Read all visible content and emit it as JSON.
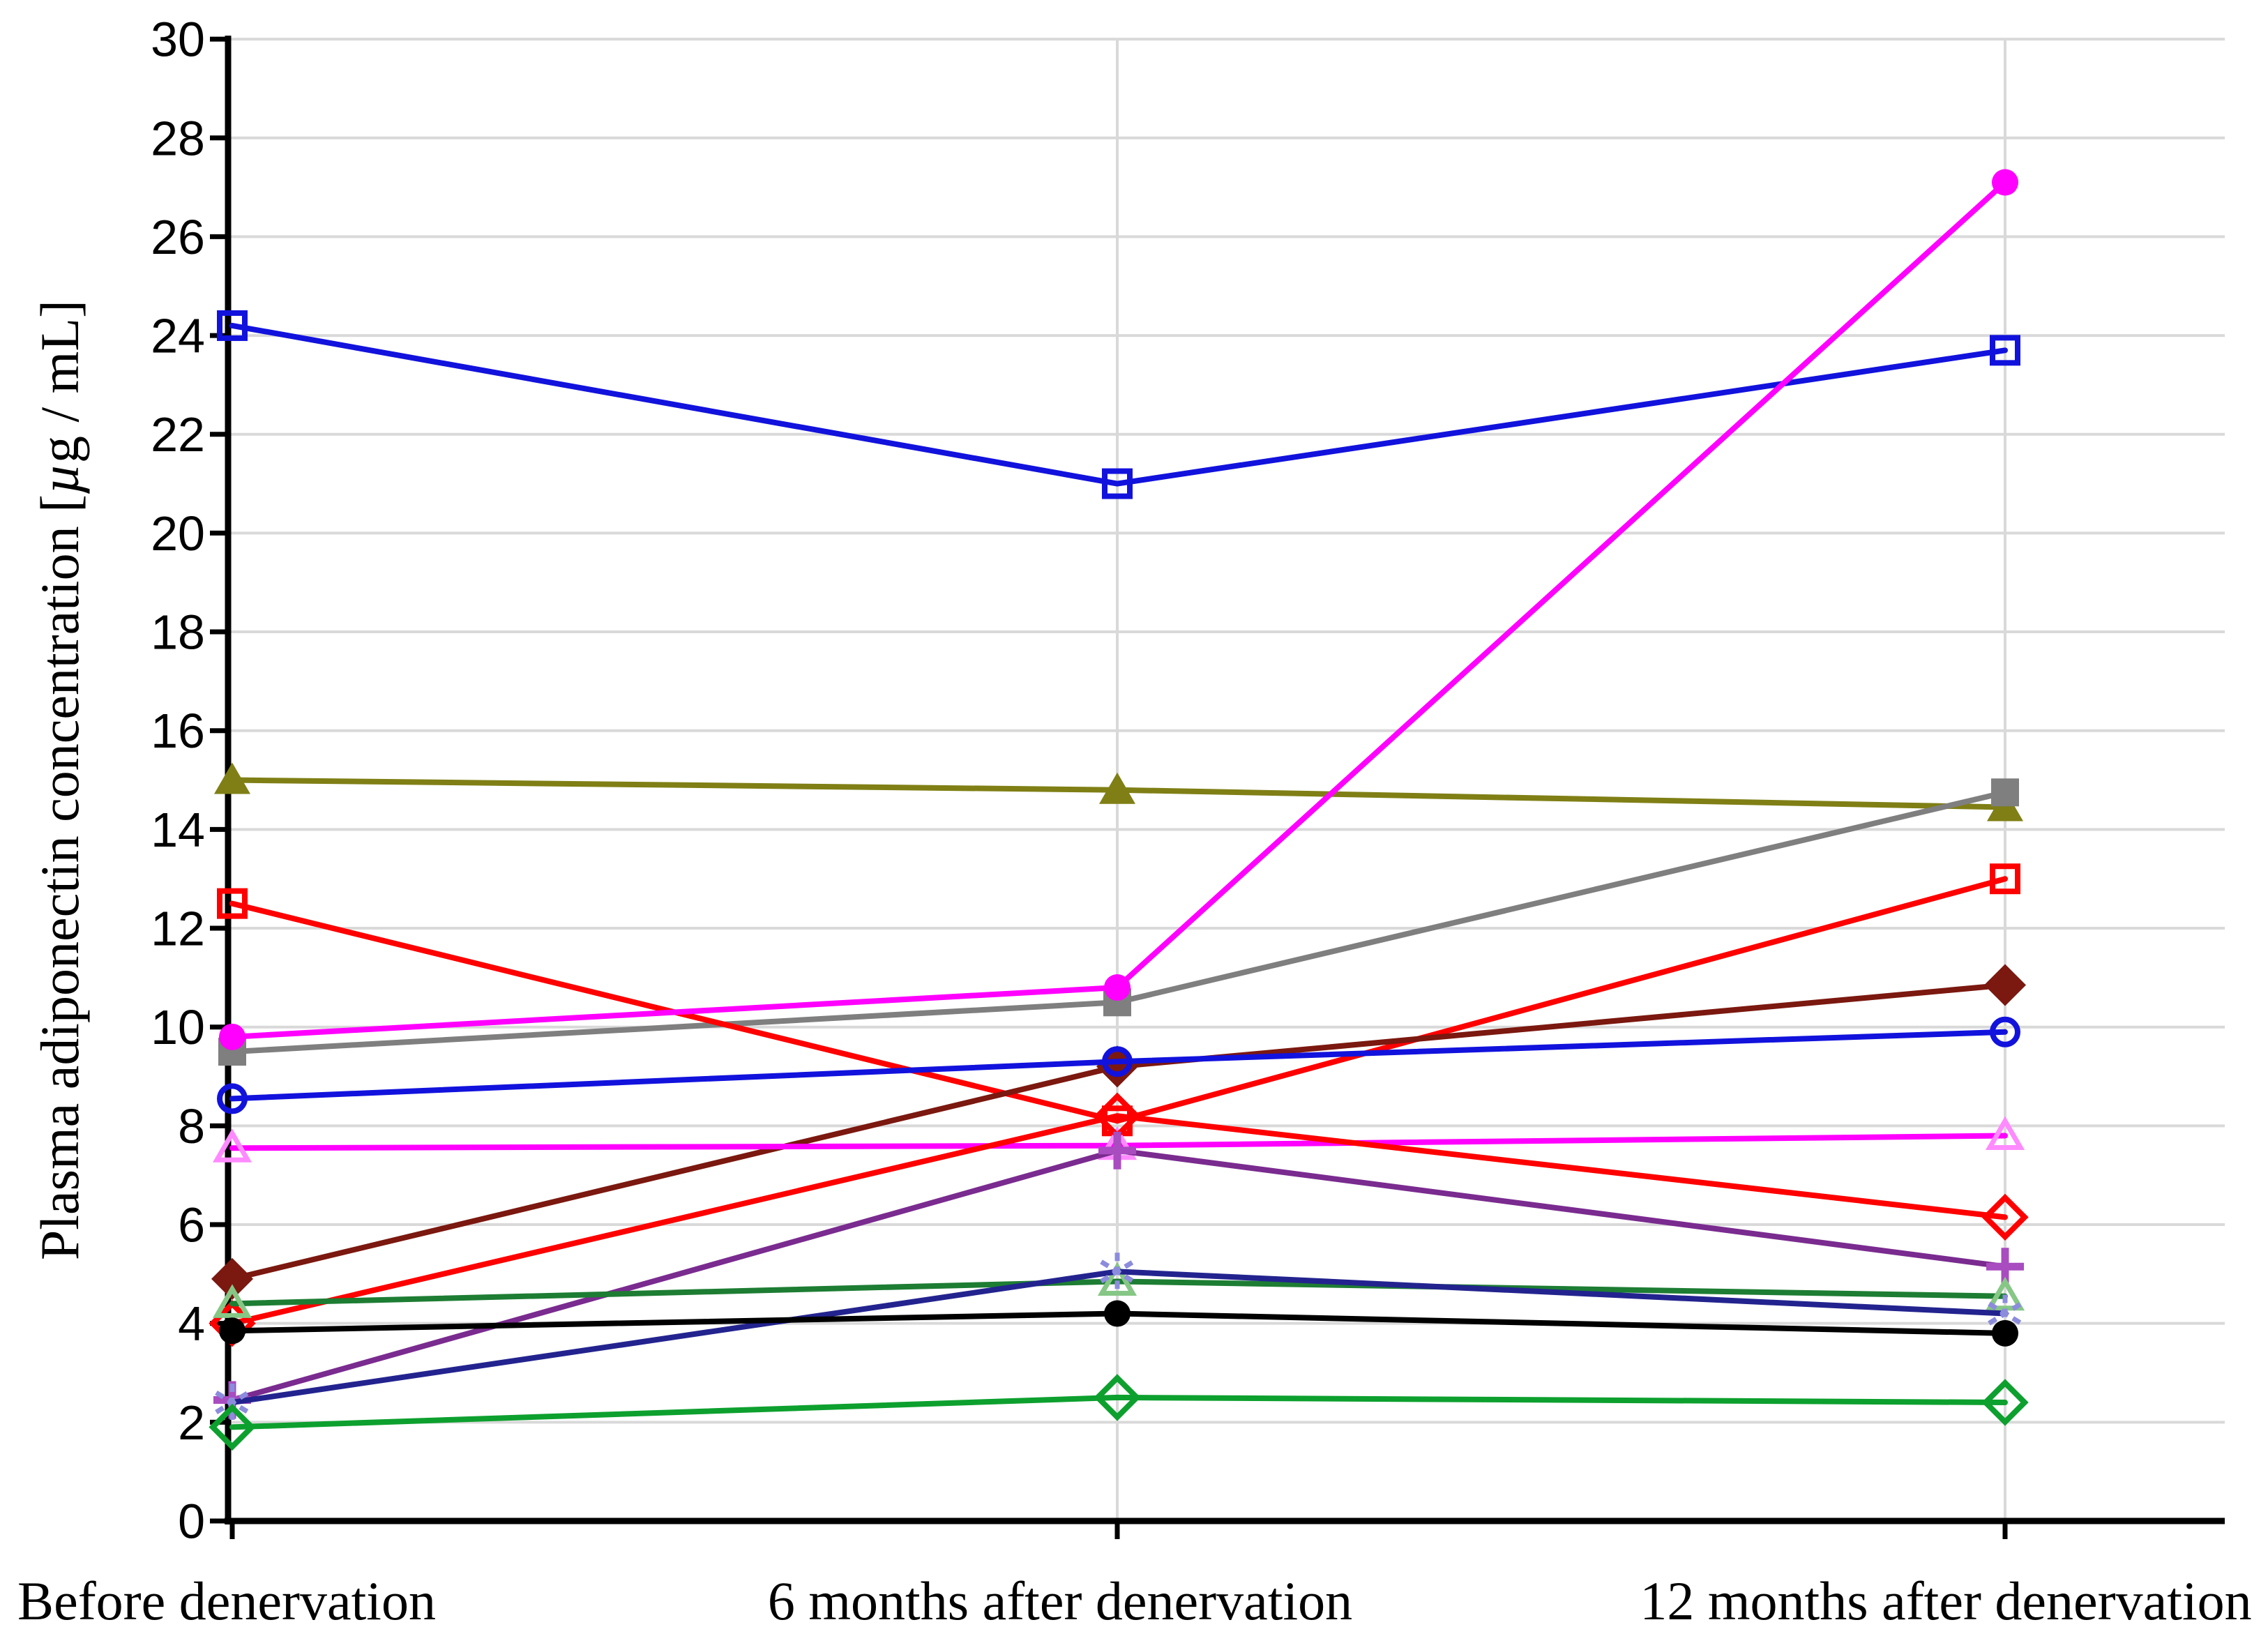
{
  "chart_data": {
    "type": "line",
    "title": "",
    "categories": [
      "Before denervation",
      "6 months after denervation",
      "12 months after denervation"
    ],
    "ylabel": "Plasma adiponectin concentration [µg / mL]",
    "ylim": [
      0,
      30
    ],
    "yticks": [
      0,
      2,
      4,
      6,
      8,
      10,
      12,
      14,
      16,
      18,
      20,
      22,
      24,
      26,
      28,
      30
    ],
    "grid": true,
    "legend": "none",
    "series": [
      {
        "id": "blue-open-square",
        "marker": "open-square",
        "color": "#1212dd",
        "values": [
          24.2,
          21.0,
          23.7
        ]
      },
      {
        "id": "olive-filled-triangle",
        "marker": "filled-triangle",
        "color": "#7f7f15",
        "values": [
          15.0,
          14.8,
          14.45
        ]
      },
      {
        "id": "gray-filled-square",
        "marker": "filled-square",
        "color": "#7f7f7f",
        "values": [
          9.5,
          10.5,
          14.75
        ]
      },
      {
        "id": "red-open-square",
        "marker": "open-square",
        "color": "#fe0000",
        "values": [
          12.5,
          8.1,
          13.0
        ]
      },
      {
        "id": "magenta-filled-circle",
        "marker": "filled-circle",
        "color": "#ff00ff",
        "values": [
          9.8,
          10.8,
          27.1
        ]
      },
      {
        "id": "darkred-filled-diamond",
        "marker": "filled-diamond",
        "color": "#7b180f",
        "values": [
          4.9,
          9.2,
          10.85
        ]
      },
      {
        "id": "blue-open-circle",
        "marker": "open-circle",
        "color": "#1212dd",
        "values": [
          8.55,
          9.3,
          9.9
        ]
      },
      {
        "id": "magenta-open-triangle",
        "marker": "open-triangle",
        "color": "#ff00ff",
        "marker_color": "#ff8aff",
        "values": [
          7.55,
          7.6,
          7.8
        ]
      },
      {
        "id": "red-open-diamond",
        "marker": "open-diamond",
        "color": "#fe0000",
        "values": [
          4.0,
          8.2,
          6.15
        ]
      },
      {
        "id": "purple-plus",
        "marker": "plus",
        "color": "#7a2b8f",
        "marker_color": "#a84cc0",
        "values": [
          2.45,
          7.5,
          5.15
        ]
      },
      {
        "id": "green-open-triangle",
        "marker": "open-triangle",
        "color": "#1d7d33",
        "marker_color": "#86c786",
        "values": [
          4.4,
          4.85,
          4.55
        ]
      },
      {
        "id": "navy-asterisk",
        "marker": "asterisk",
        "color": "#23238f",
        "marker_color": "#8c8cdd",
        "values": [
          2.4,
          5.05,
          4.2
        ]
      },
      {
        "id": "black-filled-circle",
        "marker": "filled-circle",
        "color": "#000000",
        "values": [
          3.85,
          4.2,
          3.8
        ]
      },
      {
        "id": "green-open-diamond",
        "marker": "open-diamond",
        "color": "#0da02e",
        "values": [
          1.9,
          2.5,
          2.4
        ]
      }
    ]
  },
  "colors": {
    "gridline": "#d9d9d9",
    "axis": "#000000",
    "background": "#ffffff"
  }
}
